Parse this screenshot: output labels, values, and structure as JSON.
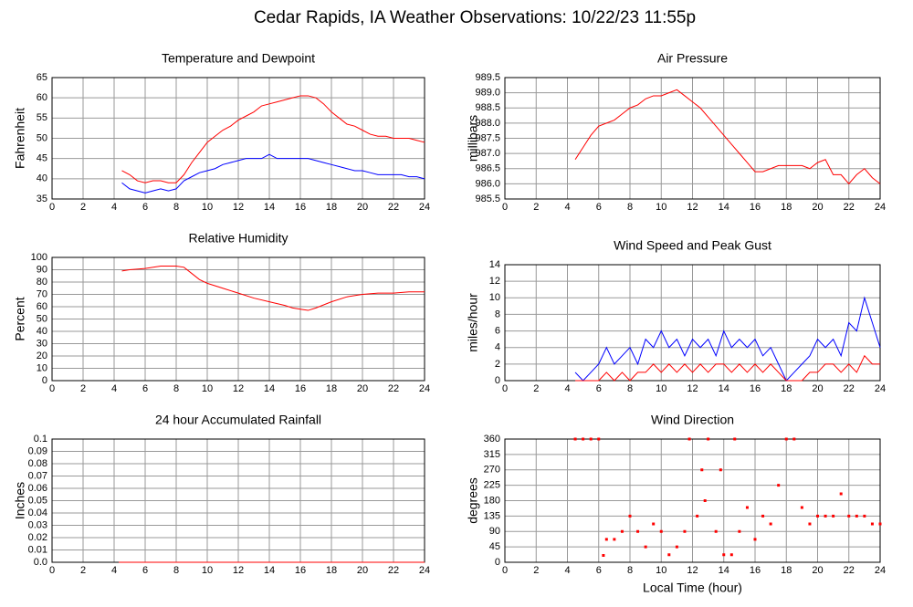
{
  "title": "Cedar Rapids, IA Weather Observations: 10/22/23 11:55p",
  "chart_data": [
    {
      "type": "line",
      "title": "Temperature and Dewpoint",
      "ylabel": "Fahrenheit",
      "x": [
        4.5,
        5,
        5.5,
        6,
        6.5,
        7,
        7.5,
        8,
        8.5,
        9,
        9.5,
        10,
        10.5,
        11,
        11.5,
        12,
        12.5,
        13,
        13.5,
        14,
        14.5,
        15,
        15.5,
        16,
        16.5,
        17,
        17.5,
        18,
        18.5,
        19,
        19.5,
        20,
        20.5,
        21,
        21.5,
        22,
        22.5,
        23,
        23.5,
        24
      ],
      "series": [
        {
          "color": "#ff0000",
          "values": [
            42,
            41,
            39.5,
            39,
            39.5,
            39.5,
            39,
            39,
            41,
            44,
            46.5,
            49,
            50.5,
            52,
            53,
            54.5,
            55.5,
            56.5,
            58,
            58.5,
            59,
            59.5,
            60,
            60.5,
            60.5,
            60,
            58.5,
            56.5,
            55,
            53.5,
            53,
            52,
            51,
            50.5,
            50.5,
            50,
            50,
            50,
            49.5,
            49
          ]
        },
        {
          "color": "#0000ff",
          "values": [
            39,
            37.5,
            37,
            36.5,
            37,
            37.5,
            37,
            37.5,
            39.5,
            40.5,
            41.5,
            42,
            42.5,
            43.5,
            44,
            44.5,
            45,
            45,
            45,
            46,
            45,
            45,
            45,
            45,
            45,
            44.5,
            44,
            43.5,
            43,
            42.5,
            42,
            42,
            41.5,
            41,
            41,
            41,
            41,
            40.5,
            40.5,
            40
          ]
        }
      ],
      "xlim": [
        0,
        24
      ],
      "xticks": [
        0,
        2,
        4,
        6,
        8,
        10,
        12,
        14,
        16,
        18,
        20,
        22,
        24
      ],
      "ylim": [
        35,
        65
      ],
      "yticks": [
        35,
        40,
        45,
        50,
        55,
        60,
        65
      ],
      "grid": true
    },
    {
      "type": "line",
      "title": "Air Pressure",
      "ylabel": "millibars",
      "x": [
        4.5,
        5,
        5.5,
        6,
        6.5,
        7,
        7.5,
        8,
        8.5,
        9,
        9.5,
        10,
        10.5,
        11,
        11.5,
        12,
        12.5,
        13,
        13.5,
        14,
        14.5,
        15,
        15.5,
        16,
        16.5,
        17,
        17.5,
        18,
        18.5,
        19,
        19.5,
        20,
        20.5,
        21,
        21.5,
        22,
        22.5,
        23,
        23.5,
        24
      ],
      "series": [
        {
          "color": "#ff0000",
          "values": [
            986.8,
            987.2,
            987.6,
            987.9,
            988.0,
            988.1,
            988.3,
            988.5,
            988.6,
            988.8,
            988.9,
            988.9,
            989.0,
            989.1,
            988.9,
            988.7,
            988.5,
            988.2,
            987.9,
            987.6,
            987.3,
            987.0,
            986.7,
            986.4,
            986.4,
            986.5,
            986.6,
            986.6,
            986.6,
            986.6,
            986.5,
            986.7,
            986.8,
            986.3,
            986.3,
            986.0,
            986.3,
            986.5,
            986.2,
            986.0
          ]
        }
      ],
      "xlim": [
        0,
        24
      ],
      "xticks": [
        0,
        2,
        4,
        6,
        8,
        10,
        12,
        14,
        16,
        18,
        20,
        22,
        24
      ],
      "ylim": [
        985.5,
        989.5
      ],
      "yticks": [
        985.5,
        {
          "value": 986,
          "label": "986.0"
        },
        986.5,
        {
          "value": 987,
          "label": "987.0"
        },
        987.5,
        {
          "value": 988,
          "label": "988.0"
        },
        988.5,
        {
          "value": 989,
          "label": "989.0"
        },
        989.5
      ],
      "grid": true
    },
    {
      "type": "line",
      "title": "Relative Humidity",
      "ylabel": "Percent",
      "x": [
        4.5,
        5,
        6,
        7,
        8,
        8.5,
        9,
        9.5,
        10,
        11,
        12,
        13,
        14,
        15,
        15.5,
        16,
        16.5,
        17,
        18,
        19,
        20,
        21,
        22,
        23,
        24
      ],
      "series": [
        {
          "color": "#ff0000",
          "values": [
            89,
            90,
            91,
            93,
            93,
            92,
            87,
            82,
            79,
            75,
            71,
            67,
            64,
            61,
            59,
            58,
            57,
            59,
            64,
            68,
            70,
            71,
            71,
            72,
            72
          ]
        }
      ],
      "xlim": [
        0,
        24
      ],
      "xticks": [
        0,
        2,
        4,
        6,
        8,
        10,
        12,
        14,
        16,
        18,
        20,
        22,
        24
      ],
      "ylim": [
        0,
        100
      ],
      "yticks": [
        0,
        10,
        20,
        30,
        40,
        50,
        60,
        70,
        80,
        90,
        100
      ],
      "grid": true
    },
    {
      "type": "line",
      "title": "Wind Speed and Peak Gust",
      "ylabel": "miles/hour",
      "x": [
        4.5,
        5,
        5.5,
        6,
        6.5,
        7,
        7.5,
        8,
        8.5,
        9,
        9.5,
        10,
        10.5,
        11,
        11.5,
        12,
        12.5,
        13,
        13.5,
        14,
        14.5,
        15,
        15.5,
        16,
        16.5,
        17,
        17.5,
        18,
        18.5,
        19,
        19.5,
        20,
        20.5,
        21,
        21.5,
        22,
        22.5,
        23,
        23.5,
        24
      ],
      "series": [
        {
          "color": "#0000ff",
          "values": [
            1,
            0,
            1,
            2,
            4,
            2,
            3,
            4,
            2,
            5,
            4,
            6,
            4,
            5,
            3,
            5,
            4,
            5,
            3,
            6,
            4,
            5,
            4,
            5,
            3,
            4,
            2,
            0,
            1,
            2,
            3,
            5,
            4,
            5,
            3,
            7,
            6,
            10,
            7,
            4
          ]
        },
        {
          "color": "#ff0000",
          "values": [
            0,
            0,
            0,
            0,
            1,
            0,
            1,
            0,
            1,
            1,
            2,
            1,
            2,
            1,
            2,
            1,
            2,
            1,
            2,
            2,
            1,
            2,
            1,
            2,
            1,
            2,
            1,
            0,
            0,
            0,
            1,
            1,
            2,
            2,
            1,
            2,
            1,
            3,
            2,
            2
          ]
        }
      ],
      "xlim": [
        0,
        24
      ],
      "xticks": [
        0,
        2,
        4,
        6,
        8,
        10,
        12,
        14,
        16,
        18,
        20,
        22,
        24
      ],
      "ylim": [
        0,
        14
      ],
      "yticks": [
        0,
        2,
        4,
        6,
        8,
        10,
        12,
        14
      ],
      "grid": true
    },
    {
      "type": "line",
      "title": "24 hour Accumulated Rainfall",
      "ylabel": "Inches",
      "x": [
        4.3,
        8,
        12,
        16,
        20,
        24
      ],
      "series": [
        {
          "color": "#ff0000",
          "values": [
            0,
            0,
            0,
            0,
            0,
            0
          ]
        }
      ],
      "xlim": [
        0,
        24
      ],
      "xticks": [
        0,
        2,
        4,
        6,
        8,
        10,
        12,
        14,
        16,
        18,
        20,
        22,
        24
      ],
      "ylim": [
        0,
        0.1
      ],
      "yticks": [
        {
          "value": 0,
          "label": "0.0"
        },
        0.01,
        0.02,
        0.03,
        0.04,
        0.05,
        0.06,
        0.07,
        0.08,
        0.09,
        0.1
      ],
      "grid": true
    },
    {
      "type": "scatter",
      "title": "Wind Direction",
      "ylabel": "degrees",
      "xlabel": "Local Time (hour)",
      "x": [
        4.5,
        5,
        5.5,
        6,
        6.3,
        6.5,
        7,
        7.5,
        8,
        8.5,
        9,
        9.5,
        10,
        10.5,
        11,
        11.5,
        11.8,
        12.3,
        12.6,
        12.8,
        13,
        13.5,
        13.8,
        14,
        14.5,
        14.7,
        15,
        15.5,
        16,
        16.5,
        17,
        17.5,
        18,
        18.5,
        19,
        19.5,
        20,
        20.5,
        21,
        21.5,
        22,
        22.5,
        23,
        23.5,
        24
      ],
      "series": [
        {
          "color": "#ff0000",
          "values": [
            360,
            360,
            360,
            360,
            20,
            67,
            67,
            90,
            135,
            90,
            45,
            112,
            90,
            22,
            45,
            90,
            360,
            135,
            270,
            180,
            360,
            90,
            270,
            22,
            22,
            360,
            90,
            160,
            67,
            135,
            112,
            225,
            360,
            360,
            160,
            112,
            135,
            135,
            135,
            200,
            135,
            135,
            135,
            112,
            112
          ]
        }
      ],
      "xlim": [
        0,
        24
      ],
      "xticks": [
        0,
        2,
        4,
        6,
        8,
        10,
        12,
        14,
        16,
        18,
        20,
        22,
        24
      ],
      "ylim": [
        0,
        360
      ],
      "yticks": [
        0,
        45,
        90,
        135,
        180,
        225,
        270,
        315,
        360
      ],
      "grid": true
    }
  ]
}
